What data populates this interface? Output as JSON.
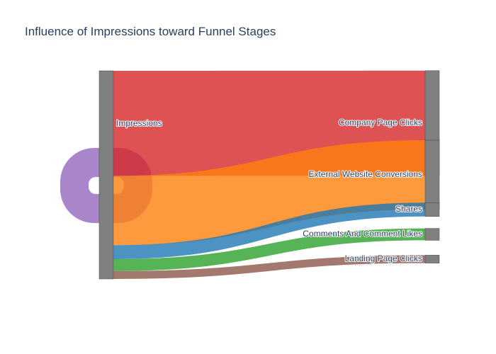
{
  "chart_data": {
    "type": "sankey",
    "title": "Influence of Impressions toward Funnel Stages",
    "nodes": [
      {
        "id": "impressions",
        "label": "Impressions",
        "color": "#808080"
      },
      {
        "id": "company",
        "label": "Company Page Clicks",
        "color": "#808080"
      },
      {
        "id": "external",
        "label": "External Website Conversions",
        "color": "#808080"
      },
      {
        "id": "shares",
        "label": "Shares",
        "color": "#808080"
      },
      {
        "id": "comments",
        "label": "Comments And Comment Likes",
        "color": "#808080"
      },
      {
        "id": "landing",
        "label": "Landing Page Clicks",
        "color": "#808080"
      }
    ],
    "links": [
      {
        "source": "impressions",
        "target": "company",
        "value": 53,
        "color": "#d62728"
      },
      {
        "source": "impressions",
        "target": "external",
        "value": 35,
        "color": "#ff7f0e"
      },
      {
        "source": "impressions",
        "target": "shares",
        "value": 7,
        "color": "#1f77b4"
      },
      {
        "source": "impressions",
        "target": "comments",
        "value": 6,
        "color": "#2ca02c"
      },
      {
        "source": "impressions",
        "target": "landing",
        "value": 4,
        "color": "#8c564b"
      },
      {
        "source": "impressions",
        "target": "impressions",
        "value": 48,
        "color": "#9467bd"
      }
    ]
  }
}
